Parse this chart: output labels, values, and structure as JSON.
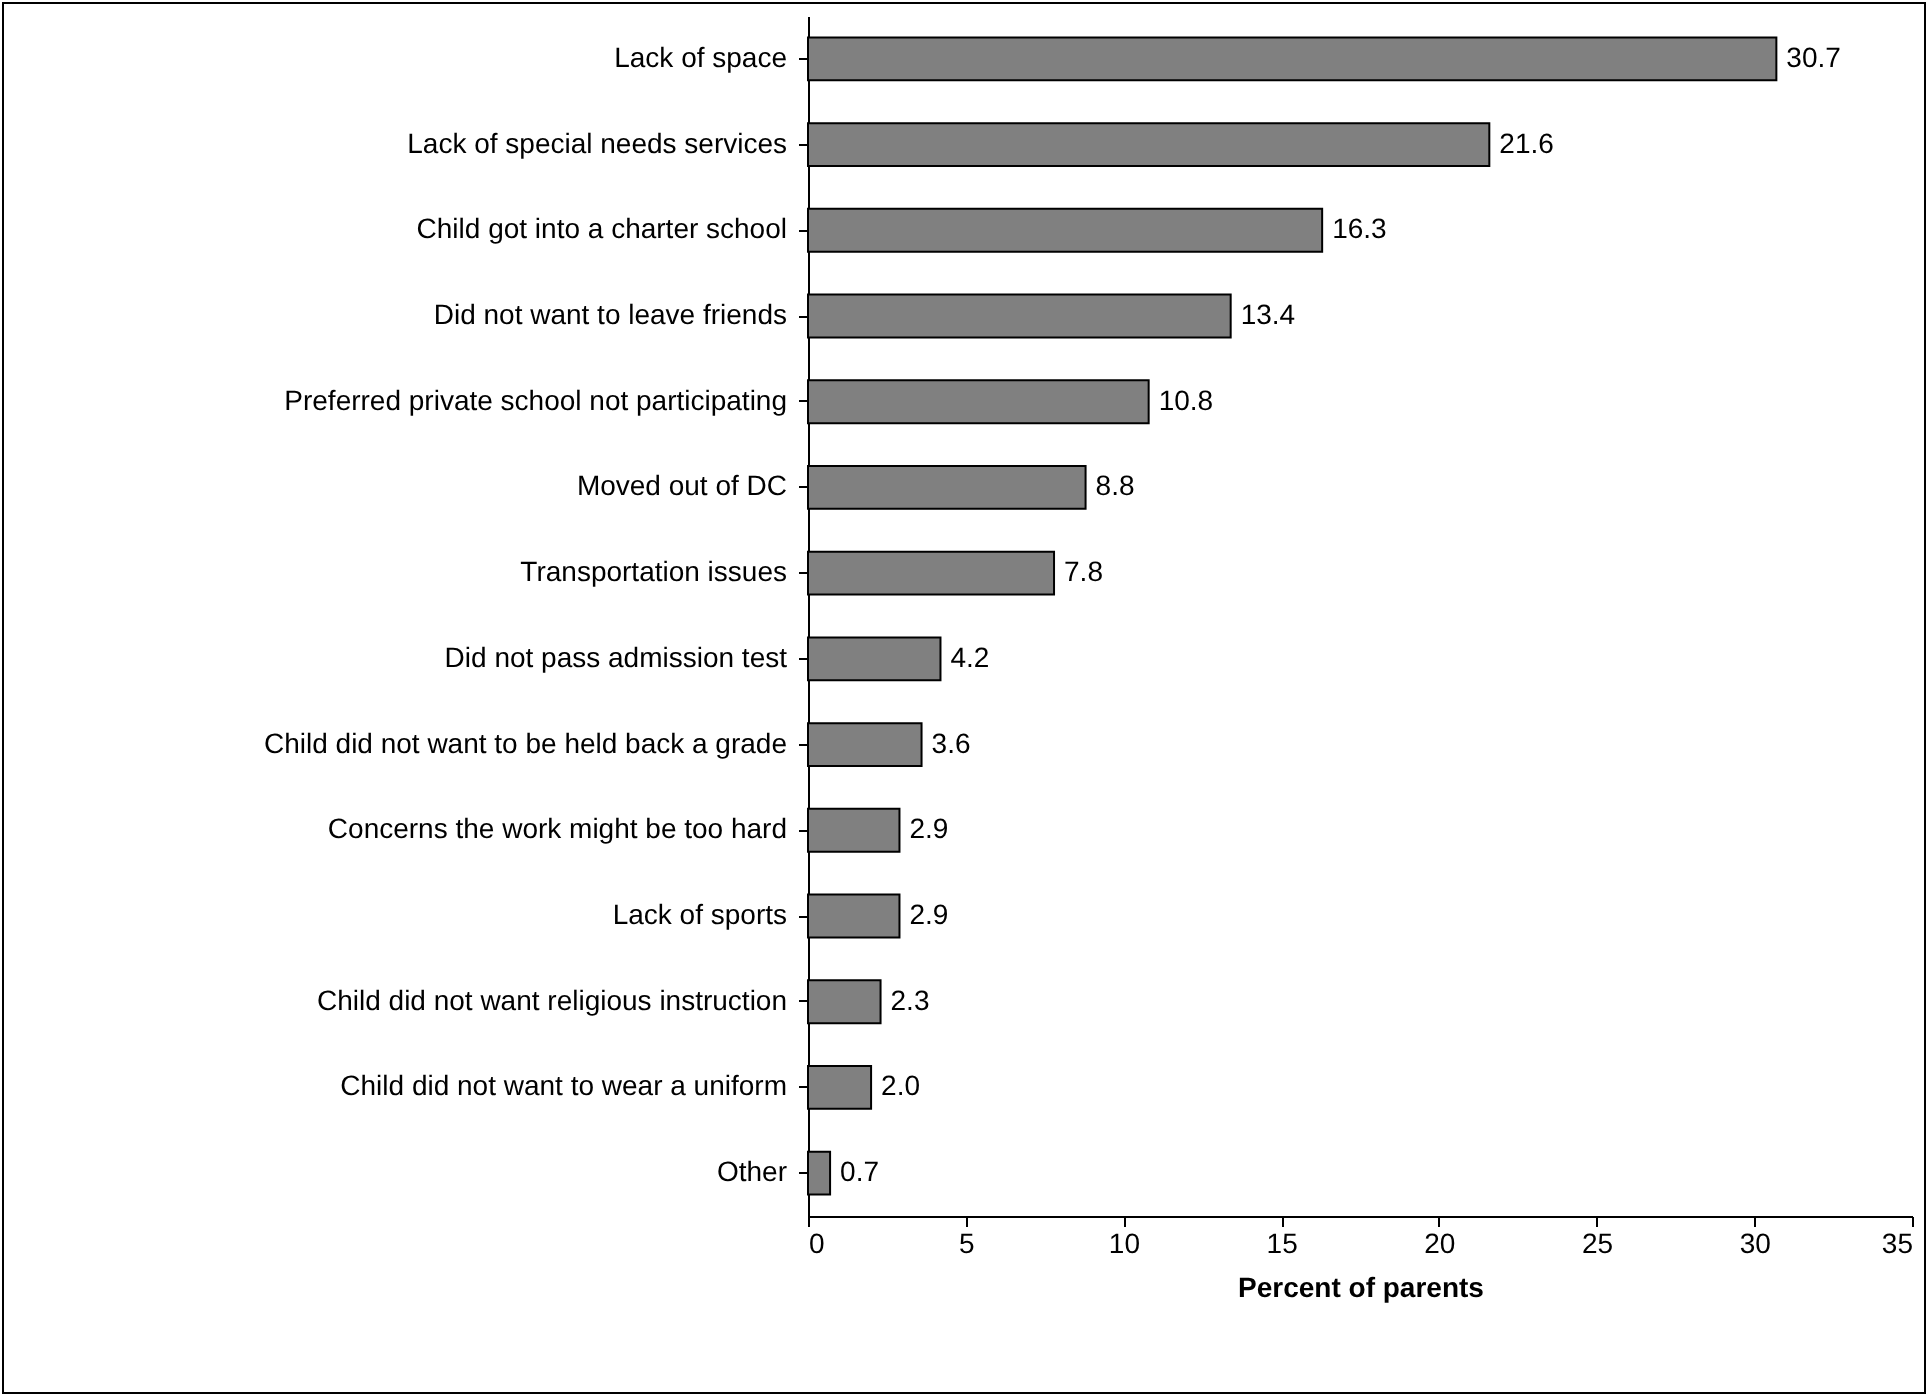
{
  "chart_data": {
    "type": "bar",
    "orientation": "horizontal",
    "xlabel": "Percent of parents",
    "categories": [
      "Lack of space",
      "Lack of special needs services",
      "Child got into a charter school",
      "Did not want to leave friends",
      "Preferred private school not participating",
      "Moved out of DC",
      "Transportation issues",
      "Did not pass admission test",
      "Child did not want to be held back a grade",
      "Concerns the work might be too hard",
      "Lack of sports",
      "Child did not want religious instruction",
      "Child did not want to wear a uniform",
      "Other"
    ],
    "values": [
      30.7,
      21.6,
      16.3,
      13.4,
      10.8,
      8.8,
      7.8,
      4.2,
      3.6,
      2.9,
      2.9,
      2.3,
      2.0,
      0.7
    ],
    "value_labels": [
      "30.7",
      "21.6",
      "16.3",
      "13.4",
      "10.8",
      "8.8",
      "7.8",
      "4.2",
      "3.6",
      "2.9",
      "2.9",
      "2.3",
      "2.0",
      "0.7"
    ],
    "color": "#808080",
    "xlim": [
      0,
      35
    ],
    "xticks": [
      0,
      5,
      10,
      15,
      20,
      25,
      30,
      35
    ],
    "grid": false
  }
}
